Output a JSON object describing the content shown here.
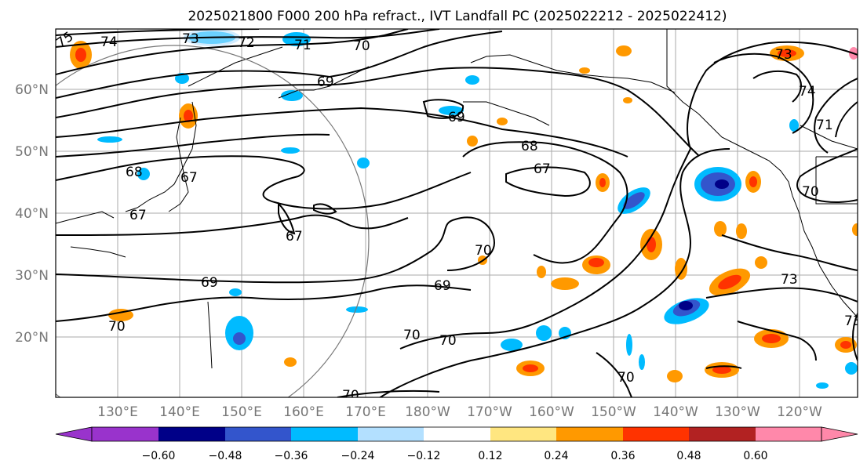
{
  "title": "2025021800 F000 200 hPa refract., IVT Landfall PC (2025022212 - 2025022412)",
  "map": {
    "lat_labels": [
      "20°N",
      "30°N",
      "40°N",
      "50°N",
      "60°N"
    ],
    "lon_labels": [
      "130°E",
      "140°E",
      "150°E",
      "160°E",
      "170°E",
      "180°W",
      "170°W",
      "160°W",
      "150°W",
      "140°W",
      "130°W",
      "120°W"
    ],
    "contour_labels": [
      "75",
      "74",
      "73",
      "72",
      "71",
      "70",
      "69",
      "69",
      "68",
      "67",
      "67",
      "68",
      "67",
      "67",
      "69",
      "70",
      "69",
      "70",
      "70",
      "70",
      "70",
      "70",
      "73",
      "73",
      "74",
      "71",
      "70",
      "73"
    ]
  },
  "colorbar": {
    "ticks": [
      "−0.60",
      "−0.48",
      "−0.36",
      "−0.24",
      "−0.12",
      "0.12",
      "0.24",
      "0.36",
      "0.48",
      "0.60"
    ],
    "colors": [
      "#9933cc",
      "#000088",
      "#3355cc",
      "#00bbff",
      "#b3e0ff",
      "#ffffff",
      "#ffe680",
      "#ff9900",
      "#ff3300",
      "#b22222",
      "#ff88aa"
    ]
  }
}
